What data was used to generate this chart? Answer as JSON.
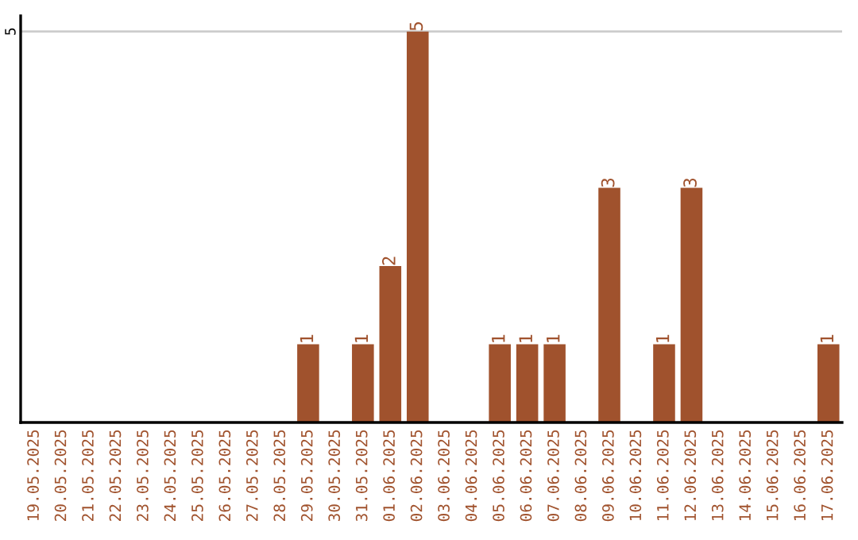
{
  "chart_data": {
    "type": "bar",
    "categories": [
      "19.05.2025",
      "20.05.2025",
      "21.05.2025",
      "22.05.2025",
      "23.05.2025",
      "24.05.2025",
      "25.05.2025",
      "26.05.2025",
      "27.05.2025",
      "28.05.2025",
      "29.05.2025",
      "30.05.2025",
      "31.05.2025",
      "01.06.2025",
      "02.06.2025",
      "03.06.2025",
      "04.06.2025",
      "05.06.2025",
      "06.06.2025",
      "07.06.2025",
      "08.06.2025",
      "09.06.2025",
      "10.06.2025",
      "11.06.2025",
      "12.06.2025",
      "13.06.2025",
      "14.06.2025",
      "15.06.2025",
      "16.06.2025",
      "17.06.2025"
    ],
    "values": [
      0,
      0,
      0,
      0,
      0,
      0,
      0,
      0,
      0,
      0,
      1,
      0,
      1,
      2,
      5,
      0,
      0,
      1,
      1,
      1,
      0,
      3,
      0,
      1,
      3,
      0,
      0,
      0,
      0,
      1
    ],
    "value_labels": [
      null,
      null,
      null,
      null,
      null,
      null,
      null,
      null,
      null,
      null,
      "1",
      null,
      "1",
      "2",
      "5",
      null,
      null,
      "1",
      "1",
      "1",
      null,
      "3",
      null,
      "1",
      "3",
      null,
      null,
      null,
      null,
      "1"
    ],
    "color": "#a0522d",
    "ylim": [
      0,
      5.2
    ],
    "yticks": [
      5
    ],
    "grid": "y"
  }
}
